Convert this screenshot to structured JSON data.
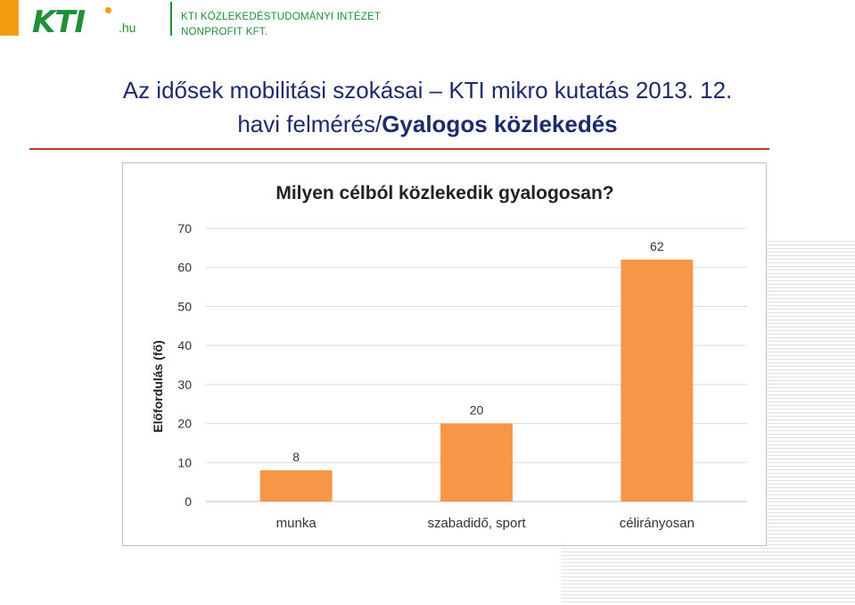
{
  "header": {
    "logo_text": "KTI",
    "logo_suffix": ".hu",
    "org_name": "KTI KÖZLEKEDÉSTUDOMÁNYI INTÉZET",
    "org_sub": "NONPROFIT KFT."
  },
  "slide": {
    "title_line1": "Az idősek mobilitási szokásai – KTI mikro kutatás 2013. 12.",
    "title_line2_prefix": "havi felmérés/",
    "title_line2_bold": "Gyalogos közlekedés"
  },
  "colors": {
    "accent": "#f39c12",
    "brand_green": "#1f8f3a",
    "title_blue": "#1c2b6b",
    "rule_red": "#c0392b",
    "bar": "#f79646"
  },
  "chart_data": {
    "type": "bar",
    "title": "Milyen célból közlekedik gyalogosan?",
    "xlabel": "",
    "ylabel": "Előfordulás (fő)",
    "categories": [
      "munka",
      "szabadidő, sport",
      "célirányosan"
    ],
    "values": [
      8,
      20,
      62
    ],
    "data_labels": [
      "8",
      "20",
      "62"
    ],
    "ylim": [
      0,
      70
    ],
    "yticks": [
      0,
      10,
      20,
      30,
      40,
      50,
      60,
      70
    ],
    "grid": true,
    "legend": "none"
  }
}
